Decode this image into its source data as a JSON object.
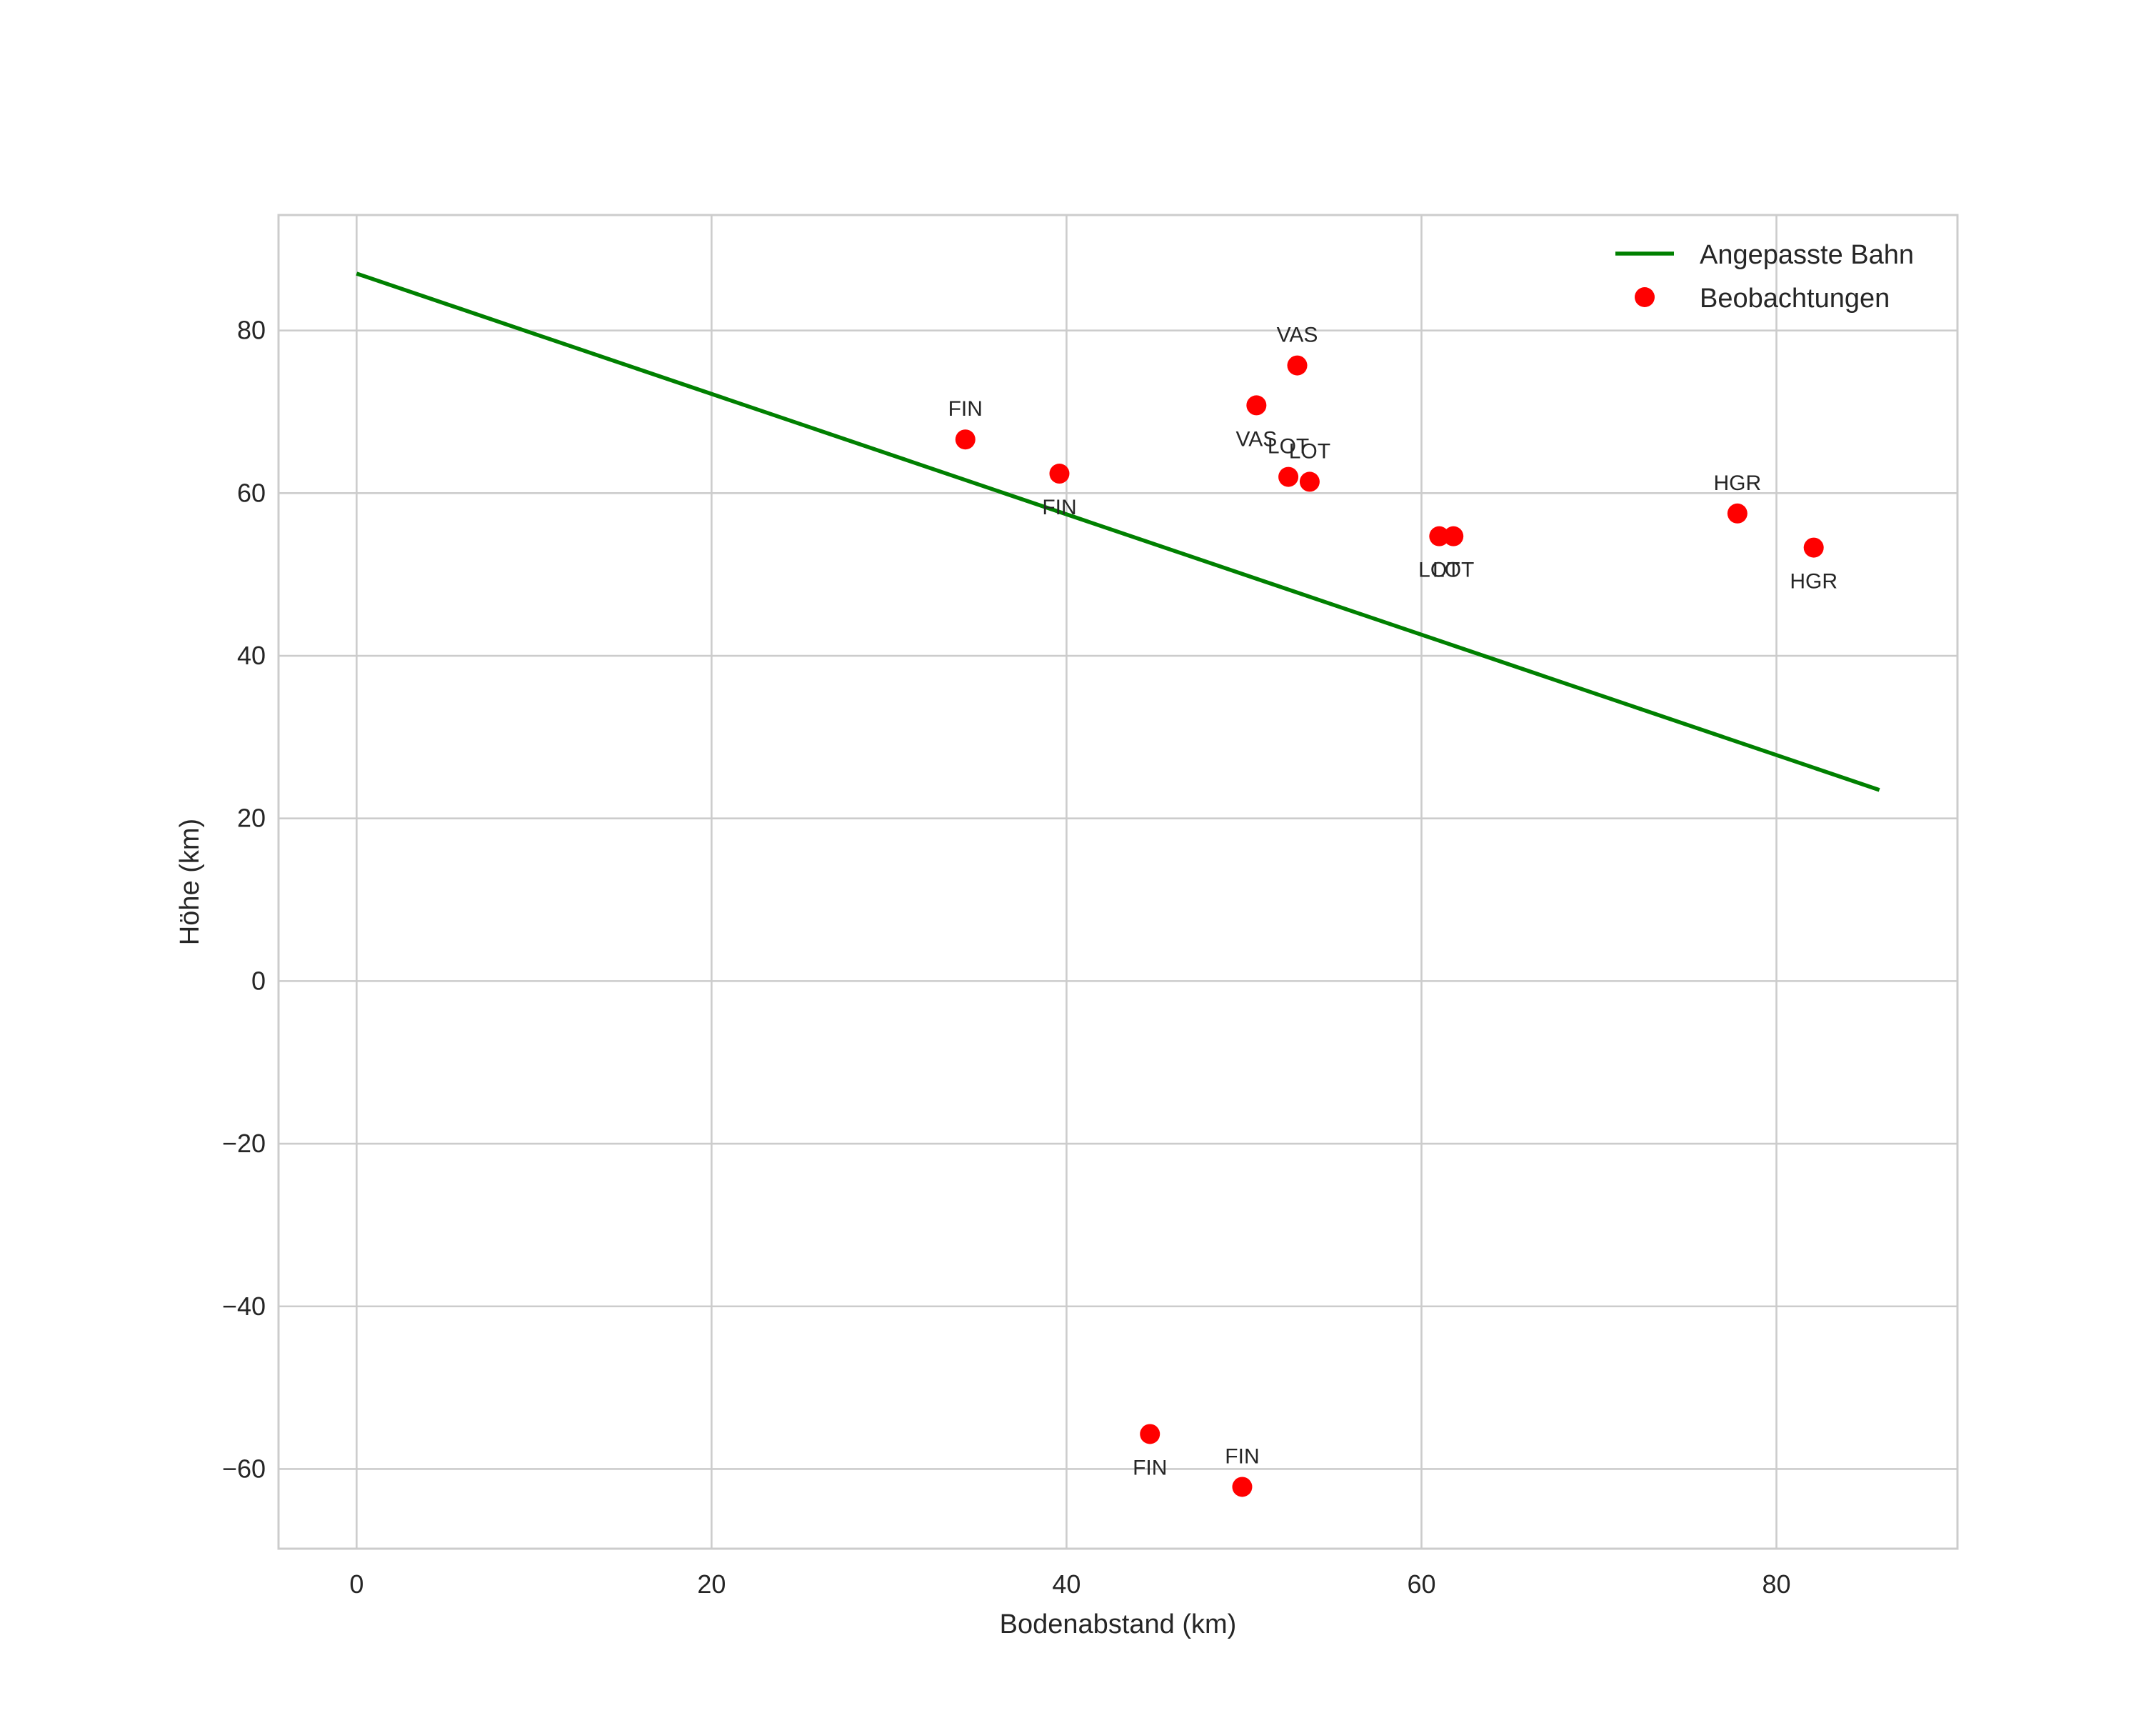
{
  "chart_data": {
    "type": "scatter",
    "title": "",
    "xlabel": "Bodenabstand (km)",
    "ylabel": "Höhe (km)",
    "xlim": [
      -4.4,
      90.2
    ],
    "ylim": [
      -69.8,
      94.2
    ],
    "xticks": [
      0,
      20,
      40,
      60,
      80
    ],
    "yticks": [
      -60,
      -40,
      -20,
      0,
      20,
      40,
      60,
      80
    ],
    "x_tick_labels": [
      "0",
      "20",
      "40",
      "60",
      "80"
    ],
    "y_tick_labels": [
      "−60",
      "−40",
      "−20",
      "0",
      "20",
      "40",
      "60",
      "80"
    ],
    "grid": true,
    "legend_position": "top-right",
    "colors": {
      "line": "#008000",
      "points": "#ff0000",
      "grid": "#cccccc",
      "text": "#262626"
    },
    "series": [
      {
        "name": "Angepasste Bahn",
        "kind": "line",
        "points": [
          [
            0,
            87.0
          ],
          [
            85.8,
            23.5
          ]
        ]
      },
      {
        "name": "Beobachtungen",
        "kind": "scatter",
        "points": [
          {
            "x": 34.3,
            "y": 66.6,
            "label": "FIN",
            "label_side": "above"
          },
          {
            "x": 39.6,
            "y": 62.4,
            "label": "FIN",
            "label_side": "below"
          },
          {
            "x": 50.7,
            "y": 70.8,
            "label": "VAS",
            "label_side": "below"
          },
          {
            "x": 53.0,
            "y": 75.7,
            "label": "VAS",
            "label_side": "above"
          },
          {
            "x": 52.5,
            "y": 62.0,
            "label": "LOT",
            "label_side": "above"
          },
          {
            "x": 53.7,
            "y": 61.4,
            "label": "LOT",
            "label_side": "above"
          },
          {
            "x": 61.0,
            "y": 54.7,
            "label": "LOT",
            "label_side": "below"
          },
          {
            "x": 61.8,
            "y": 54.7,
            "label": "LOT",
            "label_side": "below"
          },
          {
            "x": 77.8,
            "y": 57.5,
            "label": "HGR",
            "label_side": "above"
          },
          {
            "x": 82.1,
            "y": 53.3,
            "label": "HGR",
            "label_side": "below"
          },
          {
            "x": 44.7,
            "y": -55.7,
            "label": "FIN",
            "label_side": "below"
          },
          {
            "x": 49.9,
            "y": -62.2,
            "label": "FIN",
            "label_side": "above"
          }
        ]
      }
    ]
  }
}
